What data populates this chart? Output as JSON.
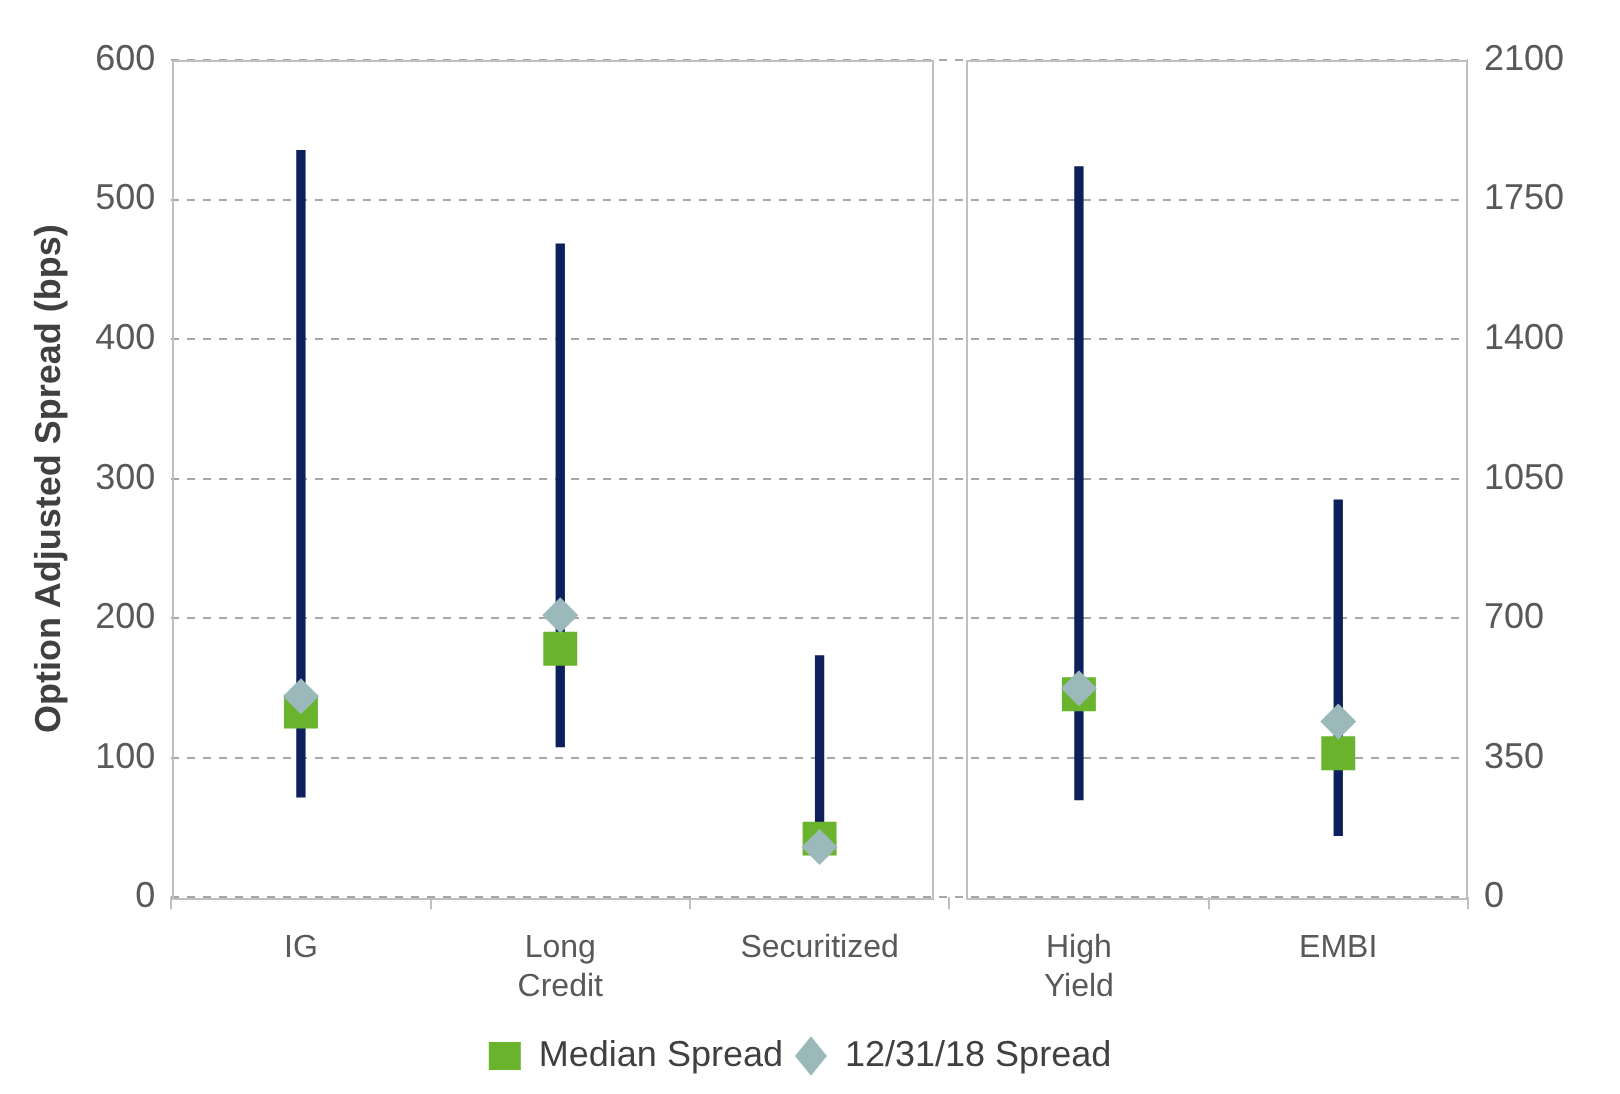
{
  "chart_data": {
    "type": "bar",
    "ylabel": "Option Adjusted Spread (bps)",
    "categories": [
      "IG",
      "Long Credit",
      "Securitized",
      "High Yield",
      "EMBI"
    ],
    "series": [
      {
        "color": "#0d1f5c",
        "base": [
          72,
          108,
          30,
          null,
          null
        ],
        "values": [
          463,
          360,
          143,
          null,
          null
        ]
      },
      {
        "axis": "y2",
        "color": "#0d1f5c",
        "base": [
          null,
          null,
          null,
          245,
          155
        ],
        "values": [
          null,
          null,
          null,
          1587,
          841
        ]
      },
      {
        "type": "scatter",
        "name": "Median Spread",
        "marker": "square",
        "color": "#6ab42d",
        "values": [
          133,
          178,
          42,
          null,
          null
        ]
      },
      {
        "type": "scatter",
        "axis": "y2",
        "marker": "square",
        "color": "#6ab42d",
        "values": [
          null,
          null,
          null,
          509,
          361
        ]
      },
      {
        "type": "scatter",
        "name": "12/31/18 Spread",
        "marker": "diamond",
        "color": "#9bb8bb",
        "values": [
          144,
          202,
          36,
          null,
          null
        ]
      },
      {
        "type": "scatter",
        "axis": "y2",
        "marker": "diamond",
        "color": "#9bb8bb",
        "values": [
          null,
          null,
          null,
          524,
          441
        ]
      }
    ],
    "ylim": [
      0,
      600
    ],
    "yticks": [
      0,
      100,
      200,
      300,
      400,
      500,
      600
    ],
    "y2lim": [
      0,
      2100
    ],
    "y2ticks": [
      0,
      350,
      700,
      1050,
      1400,
      1750,
      2100
    ],
    "grid": "y",
    "legend": "bottom"
  }
}
